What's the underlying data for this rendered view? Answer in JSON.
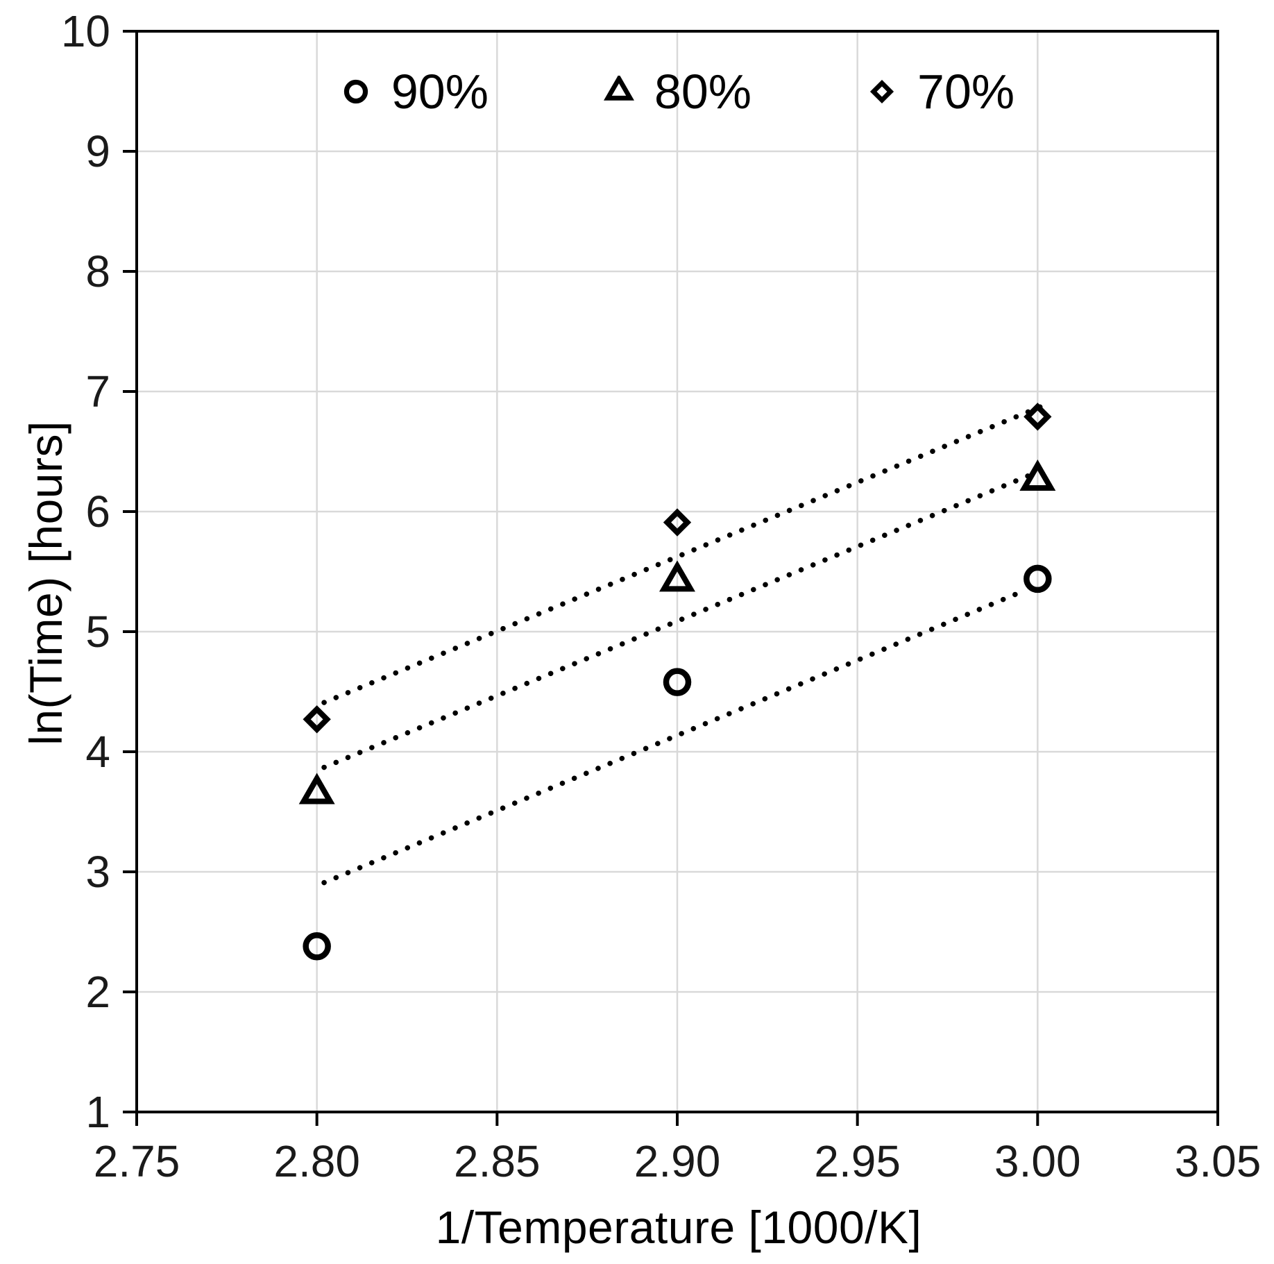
{
  "chart_data": {
    "type": "scatter",
    "title": "",
    "xlabel": "1/Temperature  [1000/K]",
    "ylabel": "ln(Time)  [hours]",
    "xlim": [
      2.75,
      3.05
    ],
    "ylim": [
      1,
      10
    ],
    "x_ticks": [
      "2.75",
      "2.80",
      "2.85",
      "2.90",
      "2.95",
      "3.00",
      "3.05"
    ],
    "y_ticks": [
      "1",
      "2",
      "3",
      "4",
      "5",
      "6",
      "7",
      "8",
      "9",
      "10"
    ],
    "grid": true,
    "legend_position": "top-center",
    "series": [
      {
        "name": "90%",
        "marker": "circle",
        "x": [
          2.8,
          2.9,
          3.0
        ],
        "values": [
          2.38,
          4.58,
          5.44
        ],
        "trendline": {
          "style": "dotted",
          "x1": 2.802,
          "y1": 2.91,
          "x2": 2.997,
          "y2": 5.35
        }
      },
      {
        "name": "80%",
        "marker": "triangle",
        "x": [
          2.8,
          2.9,
          3.0
        ],
        "values": [
          3.65,
          5.42,
          6.26
        ],
        "trendline": {
          "style": "dotted",
          "x1": 2.802,
          "y1": 3.87,
          "x2": 3.0,
          "y2": 6.33
        }
      },
      {
        "name": "70%",
        "marker": "diamond",
        "x": [
          2.8,
          2.9,
          3.0
        ],
        "values": [
          4.27,
          5.91,
          6.79
        ],
        "trendline": {
          "style": "dotted",
          "x1": 2.802,
          "y1": 4.41,
          "x2": 3.003,
          "y2": 6.9
        }
      }
    ],
    "colors": {
      "foreground": "#000000",
      "grid": "#d9d9d9",
      "background": "#ffffff"
    }
  }
}
